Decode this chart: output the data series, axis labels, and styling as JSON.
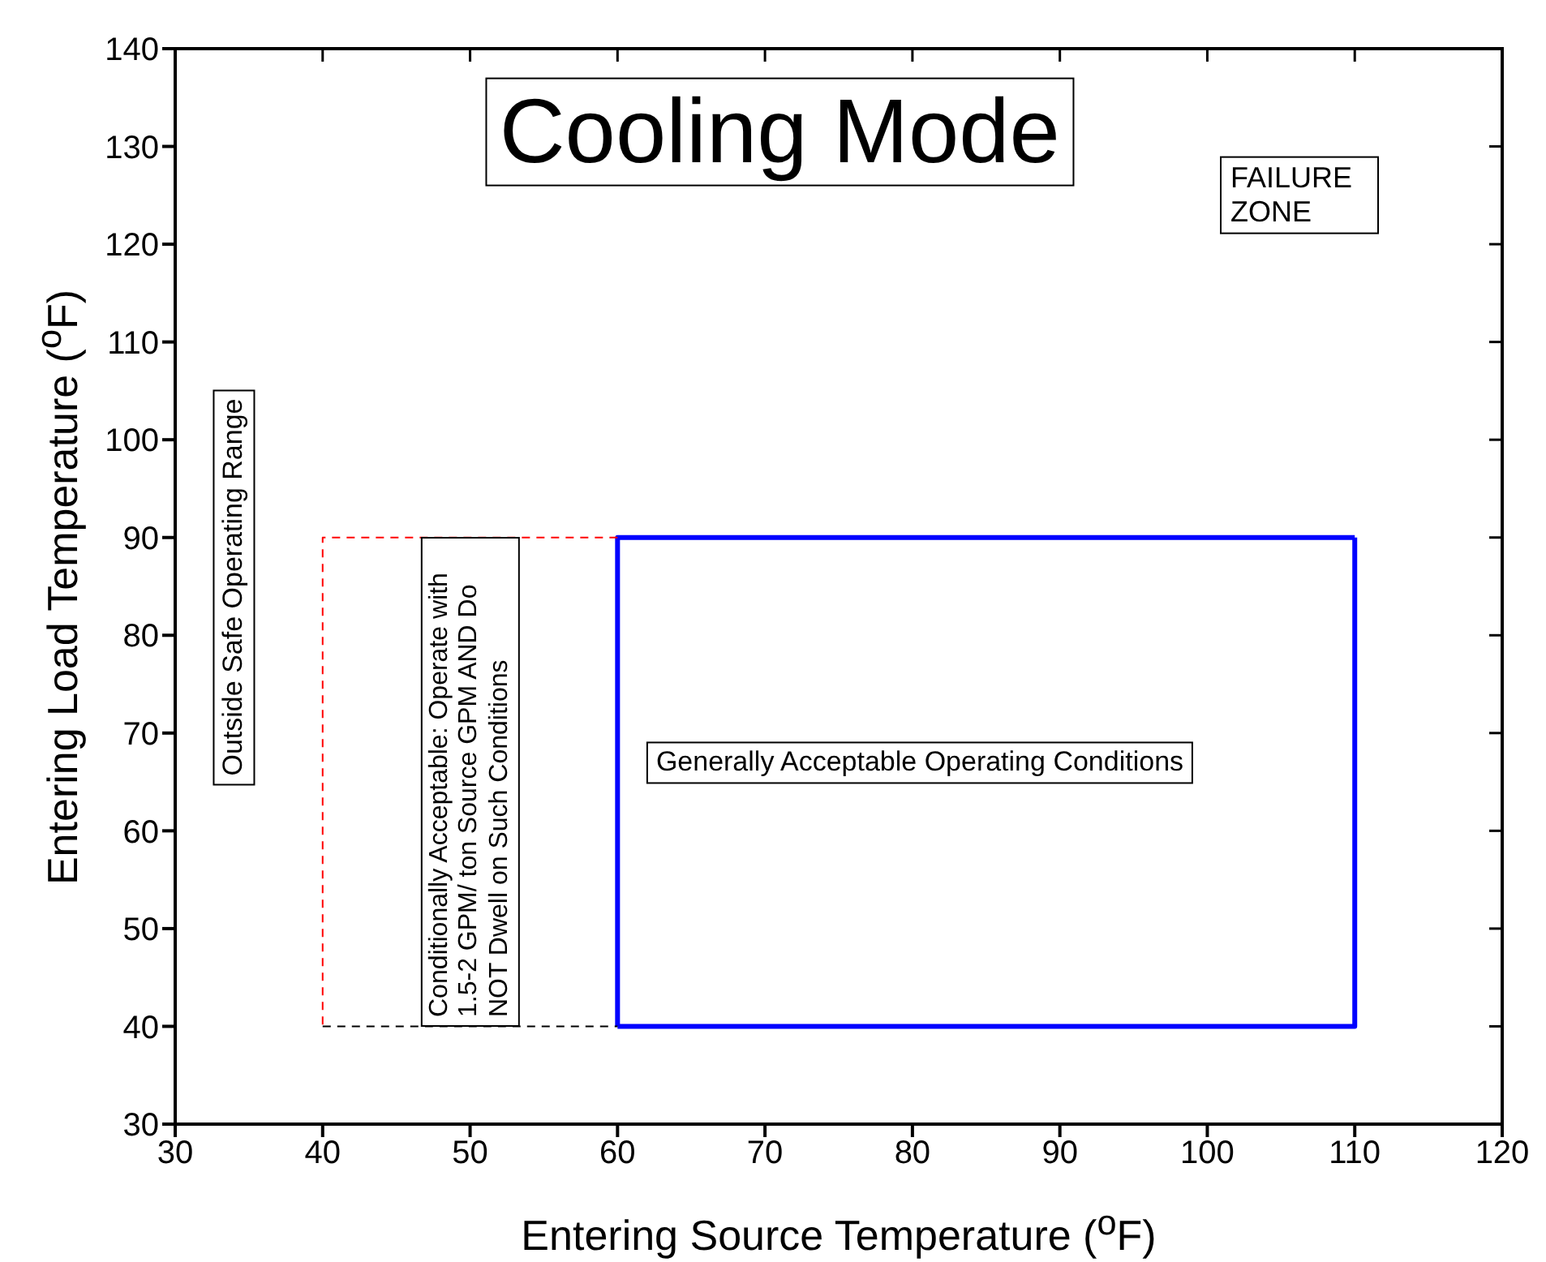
{
  "chart_data": {
    "type": "line",
    "title": "Cooling Mode",
    "xlabel": "Entering Source Temperature ($^{o}$F)",
    "ylabel": "Entering Load Temperature ($^{o}$F)",
    "xlim": [
      30,
      120
    ],
    "xticks": [
      30,
      40,
      50,
      60,
      70,
      80,
      90,
      100,
      110,
      120
    ],
    "ylim": [
      30,
      140
    ],
    "yticks": [
      30,
      40,
      50,
      60,
      70,
      80,
      90,
      100,
      110,
      120,
      130,
      140
    ],
    "grid": false,
    "marker": "none",
    "series": [
      {
        "color": "#0000ff",
        "line_style": "solid",
        "x": [
          60,
          60,
          110
        ],
        "values": [
          40,
          90,
          90
        ]
      },
      {
        "color": "#0000ff",
        "line_style": "solid",
        "x": [
          60,
          110,
          110
        ],
        "values": [
          40,
          40,
          90
        ]
      },
      {
        "color": "#ff0000",
        "line_style": "dashed",
        "x": [
          60,
          40,
          40
        ],
        "values": [
          90,
          90,
          40
        ]
      },
      {
        "color": "#000000",
        "line_style": "dashed",
        "x": [
          40,
          60
        ],
        "values": [
          40,
          40
        ]
      }
    ],
    "annotations": [
      "FAILURE ZONE",
      "Outside Safe Operating Range",
      "Conditionally Acceptable: Operate with 1.5-2 GPM/ ton Source GPM AND Do NOT Dwell on Such Conditions",
      "Generally Acceptable Operating Conditions"
    ]
  }
}
